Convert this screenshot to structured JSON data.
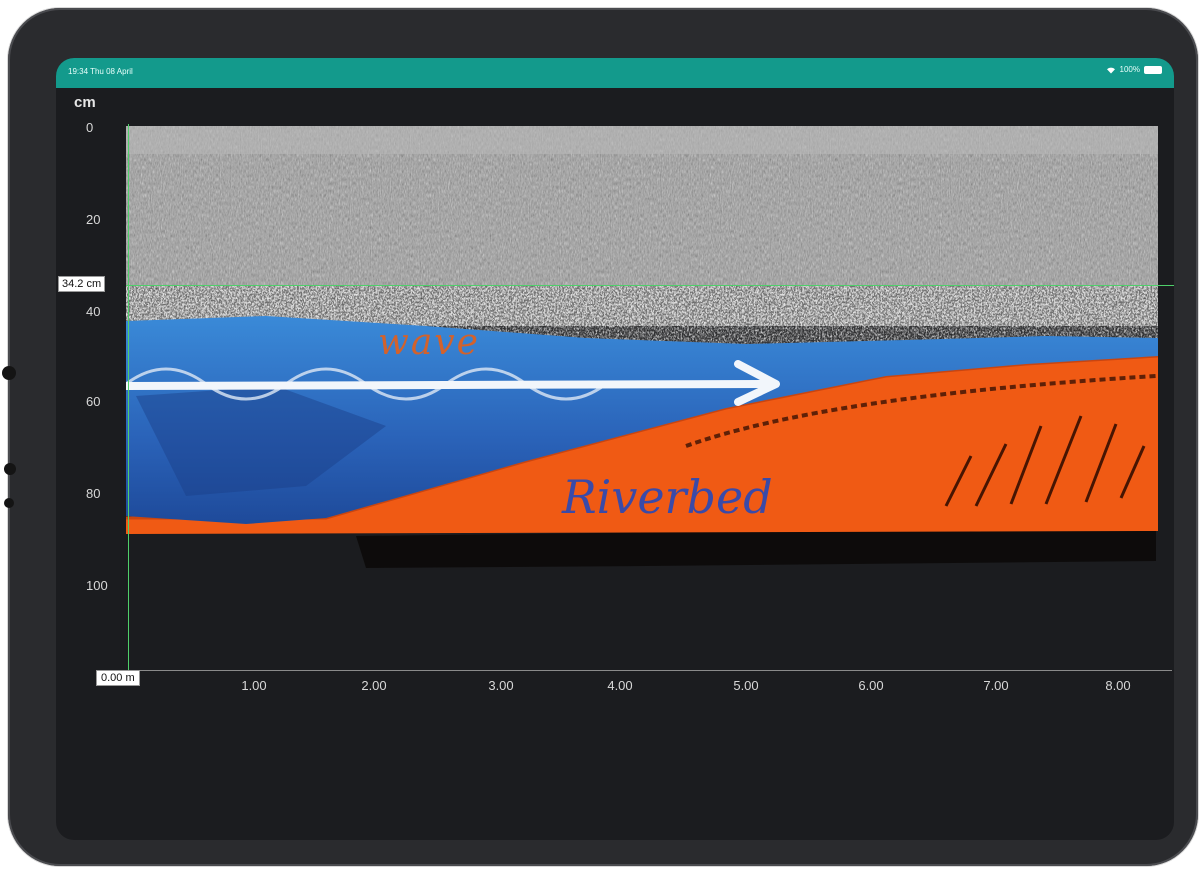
{
  "status_bar": {
    "time": "19:34 Thu 08 April",
    "battery": "100%"
  },
  "radargram": {
    "depth_unit": "cm",
    "y_ticks": [
      "0",
      "20",
      "40",
      "60",
      "80",
      "100"
    ],
    "x_ticks": [
      "1.00",
      "2.00",
      "3.00",
      "4.00",
      "5.00",
      "6.00",
      "7.00",
      "8.00"
    ],
    "depth_cursor_label": "34.2 cm",
    "origin_label": "0.00 m"
  },
  "annotations": {
    "wave": "wave",
    "riverbed": "Riverbed"
  },
  "colors": {
    "status_bar": "#139a8c",
    "cursor_lines": "#4fcf6a",
    "water": "#2f74c8",
    "riverbed": "#f05a14"
  }
}
